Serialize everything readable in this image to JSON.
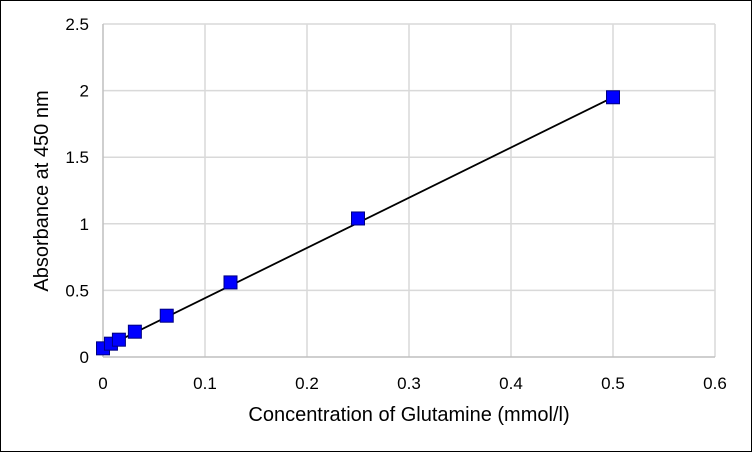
{
  "chart_data": {
    "type": "scatter",
    "title": "",
    "xlabel": "Concentration of Glutamine (mmol/l)",
    "ylabel": "Absorbance at 450 nm",
    "xlim": [
      0,
      0.6
    ],
    "ylim": [
      0,
      2.5
    ],
    "x_ticks": [
      "0",
      "0.1",
      "0.2",
      "0.3",
      "0.4",
      "0.5",
      "0.6"
    ],
    "y_ticks": [
      "0",
      "0.5",
      "1",
      "1.5",
      "2",
      "2.5"
    ],
    "x_tick_values": [
      0,
      0.1,
      0.2,
      0.3,
      0.4,
      0.5,
      0.6
    ],
    "y_tick_values": [
      0,
      0.5,
      1,
      1.5,
      2,
      2.5
    ],
    "grid": true,
    "legend": "none",
    "series": [
      {
        "marker": "square",
        "marker_color": "#0000ff",
        "marker_edge_color": "#000080",
        "line_color": "#000000",
        "points": [
          {
            "x": 0,
            "y": 0.065
          },
          {
            "x": 0.0078,
            "y": 0.1
          },
          {
            "x": 0.0156,
            "y": 0.13
          },
          {
            "x": 0.03125,
            "y": 0.19
          },
          {
            "x": 0.0625,
            "y": 0.31
          },
          {
            "x": 0.125,
            "y": 0.56
          },
          {
            "x": 0.25,
            "y": 1.04
          },
          {
            "x": 0.5,
            "y": 1.95
          }
        ]
      }
    ],
    "fit_line": {
      "x": [
        0,
        0.5
      ],
      "y": [
        0.065,
        1.95
      ],
      "color": "#000000"
    },
    "gridline_color": "#d9d9d9",
    "axis_color": "#bfbfbf"
  }
}
